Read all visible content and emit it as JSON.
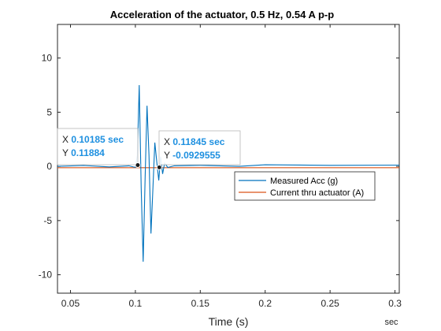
{
  "chart_data": {
    "type": "line",
    "title": "Acceleration of the actuator, 0.5 Hz, 0.54 A p-p",
    "xlabel": "Time (s)",
    "xunit": "sec",
    "ylabel": "",
    "xlim": [
      0.04,
      0.3033
    ],
    "ylim": [
      -11.7,
      13.1
    ],
    "xticks": [
      0.05,
      0.1,
      0.15,
      0.2,
      0.25,
      0.3
    ],
    "xtick_labels": [
      "0.05",
      "0.1",
      "0.15",
      "0.2",
      "0.25",
      "0.3"
    ],
    "yticks": [
      -10,
      -5,
      0,
      5,
      10
    ],
    "ytick_labels": [
      "-10",
      "-5",
      "0",
      "5",
      "10"
    ],
    "grid": false,
    "legend_position": "right-center",
    "series": [
      {
        "name": "Measured Acc (g)",
        "color": "#0072bd",
        "x": [
          0.04,
          0.06,
          0.08,
          0.095,
          0.1,
          0.1015,
          0.103,
          0.1045,
          0.106,
          0.1075,
          0.109,
          0.1105,
          0.112,
          0.1135,
          0.115,
          0.1165,
          0.118,
          0.1195,
          0.121,
          0.1225,
          0.125,
          0.13,
          0.15,
          0.18,
          0.2,
          0.25,
          0.3033
        ],
        "y": [
          0,
          0.08,
          -0.05,
          0.05,
          -0.1,
          1.0,
          7.5,
          -2.0,
          -8.8,
          -1.0,
          5.6,
          1.0,
          -6.2,
          -2.0,
          2.2,
          0.4,
          -1.3,
          0.9,
          -0.7,
          0.3,
          -0.1,
          0.05,
          0.1,
          0.0,
          0.15,
          0.1,
          0.12
        ]
      },
      {
        "name": "Current thru actuator (A)",
        "color": "#d95319",
        "x": [
          0.04,
          0.3033
        ],
        "y": [
          -0.12,
          -0.12
        ]
      }
    ],
    "datatips": [
      {
        "x_label": "X",
        "x_value": "0.10185 sec",
        "y_label": "Y",
        "y_value": "0.11884",
        "x": 0.10185,
        "y": 0.11884
      },
      {
        "x_label": "X",
        "x_value": "0.11845 sec",
        "y_label": "Y",
        "y_value": "-0.0929555",
        "x": 0.11845,
        "y": -0.0929555
      }
    ]
  }
}
